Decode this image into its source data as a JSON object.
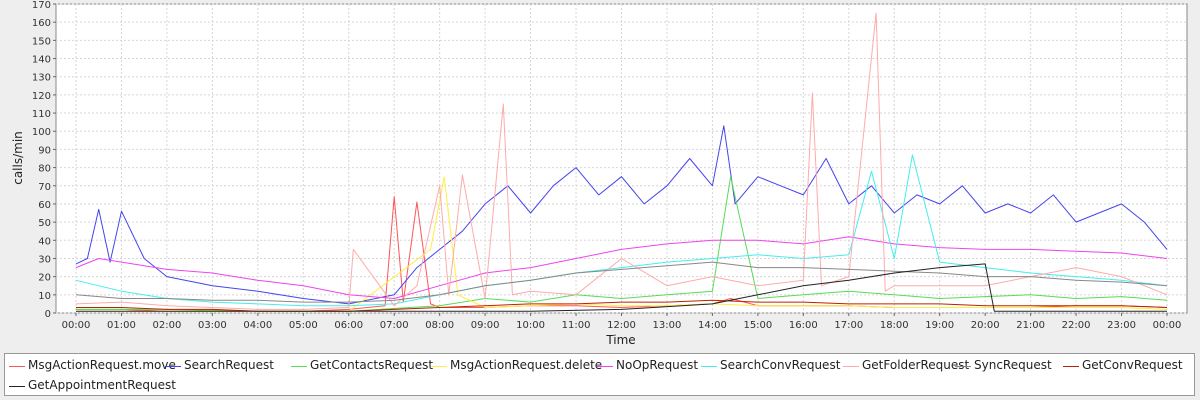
{
  "chart_data": {
    "type": "line",
    "title": "",
    "xlabel": "Time",
    "ylabel": "calls/min",
    "ylim": [
      0,
      170
    ],
    "yticks": [
      0,
      10,
      20,
      30,
      40,
      50,
      60,
      70,
      80,
      90,
      100,
      110,
      120,
      130,
      140,
      150,
      160,
      170
    ],
    "xlim": [
      0,
      24
    ],
    "xticks": [
      "00:00",
      "01:00",
      "02:00",
      "03:00",
      "04:00",
      "05:00",
      "06:00",
      "07:00",
      "08:00",
      "09:00",
      "10:00",
      "11:00",
      "12:00",
      "13:00",
      "14:00",
      "15:00",
      "16:00",
      "17:00",
      "18:00",
      "19:00",
      "20:00",
      "21:00",
      "22:00",
      "23:00",
      "00:00"
    ],
    "grid": true,
    "legend_position": "bottom",
    "series": [
      {
        "name": "MsgActionRequest.move",
        "color": "#ff5555",
        "x": [
          0,
          1,
          2,
          3,
          4,
          5,
          6,
          6.8,
          7.0,
          7.2,
          7.5,
          7.8,
          8,
          9,
          10,
          11,
          12,
          13,
          14,
          14.4,
          15,
          16,
          17,
          18,
          19,
          20,
          21,
          22,
          23,
          24
        ],
        "values": [
          2,
          2,
          1,
          1,
          1,
          1,
          2,
          4,
          64,
          6,
          61,
          5,
          3,
          3,
          4,
          4,
          3,
          4,
          5,
          8,
          4,
          4,
          4,
          3,
          3,
          3,
          3,
          4,
          4,
          3
        ]
      },
      {
        "name": "SearchRequest",
        "color": "#4444ee",
        "x": [
          0,
          0.25,
          0.5,
          0.75,
          1,
          1.5,
          2,
          3,
          4,
          5,
          6,
          7,
          7.5,
          8,
          8.5,
          9,
          9.5,
          10,
          10.5,
          11,
          11.5,
          12,
          12.5,
          13,
          13.5,
          14,
          14.25,
          14.5,
          15,
          15.5,
          16,
          16.5,
          17,
          17.5,
          18,
          18.5,
          19,
          19.5,
          20,
          20.5,
          21,
          21.5,
          22,
          22.5,
          23,
          23.5,
          24
        ],
        "values": [
          27,
          30,
          57,
          28,
          56,
          30,
          20,
          15,
          12,
          8,
          5,
          10,
          25,
          35,
          45,
          60,
          70,
          55,
          70,
          80,
          65,
          75,
          60,
          70,
          85,
          70,
          103,
          60,
          75,
          70,
          65,
          85,
          60,
          70,
          55,
          65,
          60,
          70,
          55,
          60,
          55,
          65,
          50,
          55,
          60,
          50,
          35
        ]
      },
      {
        "name": "GetContactsRequest",
        "color": "#55dd55",
        "x": [
          0,
          2,
          4,
          6,
          8,
          9,
          10,
          11,
          12,
          13,
          14,
          14.4,
          15,
          16,
          17,
          18,
          19,
          20,
          21,
          22,
          23,
          24
        ],
        "values": [
          2,
          2,
          1,
          1,
          4,
          8,
          6,
          10,
          8,
          10,
          12,
          75,
          8,
          10,
          12,
          10,
          8,
          9,
          10,
          8,
          9,
          7
        ]
      },
      {
        "name": "MsgActionRequest.delete",
        "color": "#ffee44",
        "x": [
          0,
          2,
          4,
          6,
          7.8,
          8.1,
          8.4,
          9,
          10,
          11,
          12,
          13,
          14,
          15,
          16,
          17,
          18,
          19,
          20,
          21,
          22,
          23,
          24
        ],
        "values": [
          1,
          1,
          1,
          1,
          35,
          75,
          10,
          3,
          4,
          5,
          4,
          4,
          5,
          4,
          4,
          4,
          3,
          3,
          3,
          3,
          3,
          3,
          2
        ]
      },
      {
        "name": "NoOpRequest",
        "color": "#ee44ee",
        "x": [
          0,
          0.5,
          1,
          1.5,
          2,
          3,
          4,
          5,
          6,
          7,
          8,
          9,
          10,
          11,
          12,
          13,
          14,
          15,
          16,
          17,
          18,
          19,
          20,
          21,
          22,
          23,
          24
        ],
        "values": [
          25,
          30,
          28,
          26,
          24,
          22,
          18,
          15,
          10,
          8,
          15,
          22,
          25,
          30,
          35,
          38,
          40,
          40,
          38,
          42,
          38,
          36,
          35,
          35,
          34,
          33,
          30
        ]
      },
      {
        "name": "SearchConvRequest",
        "color": "#44eeee",
        "x": [
          0,
          1,
          2,
          3,
          4,
          5,
          6,
          7,
          8,
          9,
          10,
          11,
          12,
          13,
          14,
          15,
          16,
          17,
          17.5,
          18,
          18.4,
          19,
          20,
          21,
          22,
          23,
          24
        ],
        "values": [
          18,
          12,
          8,
          6,
          5,
          4,
          4,
          5,
          10,
          15,
          18,
          22,
          25,
          28,
          30,
          32,
          30,
          32,
          78,
          30,
          87,
          28,
          25,
          22,
          20,
          18,
          15
        ]
      },
      {
        "name": "GetFolderRequest",
        "color": "#ffaaaa",
        "x": [
          0,
          1,
          2,
          3,
          4,
          5,
          6,
          6.1,
          7,
          7.5,
          8,
          8.2,
          8.5,
          9,
          9.4,
          9.6,
          10,
          11,
          12,
          13,
          14,
          15,
          16,
          16.2,
          16.4,
          17,
          17.6,
          17.8,
          18,
          19,
          20,
          21,
          22,
          23,
          24
        ],
        "values": [
          5,
          6,
          4,
          3,
          2,
          2,
          3,
          35,
          4,
          15,
          70,
          10,
          76,
          8,
          115,
          10,
          12,
          10,
          30,
          15,
          20,
          15,
          18,
          121,
          15,
          20,
          165,
          12,
          15,
          15,
          15,
          20,
          25,
          20,
          10
        ]
      },
      {
        "name": "SyncRequest",
        "color": "#888888",
        "x": [
          0,
          1,
          2,
          3,
          4,
          5,
          6,
          7,
          8,
          9,
          10,
          11,
          12,
          13,
          14,
          15,
          16,
          17,
          18,
          19,
          20,
          21,
          22,
          23,
          24
        ],
        "values": [
          10,
          8,
          8,
          7,
          7,
          6,
          6,
          7,
          10,
          15,
          18,
          22,
          24,
          26,
          28,
          25,
          25,
          24,
          23,
          22,
          20,
          20,
          18,
          17,
          15
        ]
      },
      {
        "name": "GetConvRequest",
        "color": "#bb2200",
        "x": [
          0,
          1,
          2,
          3,
          4,
          5,
          6,
          7,
          8,
          9,
          10,
          11,
          12,
          13,
          14,
          15,
          16,
          17,
          18,
          19,
          20,
          21,
          22,
          23,
          24
        ],
        "values": [
          3,
          3,
          2,
          2,
          1,
          1,
          1,
          2,
          3,
          4,
          5,
          5,
          6,
          6,
          7,
          6,
          6,
          5,
          5,
          5,
          4,
          4,
          4,
          4,
          3
        ]
      },
      {
        "name": "GetAppointmentRequest",
        "color": "#222222",
        "x": [
          0,
          2,
          4,
          6,
          8,
          10,
          12,
          14,
          15,
          16,
          17,
          18,
          19,
          20,
          20.2,
          21,
          22,
          23,
          24
        ],
        "values": [
          1,
          1,
          1,
          1,
          1,
          1,
          2,
          5,
          10,
          15,
          18,
          22,
          25,
          27,
          1,
          1,
          1,
          1,
          1
        ]
      }
    ]
  }
}
